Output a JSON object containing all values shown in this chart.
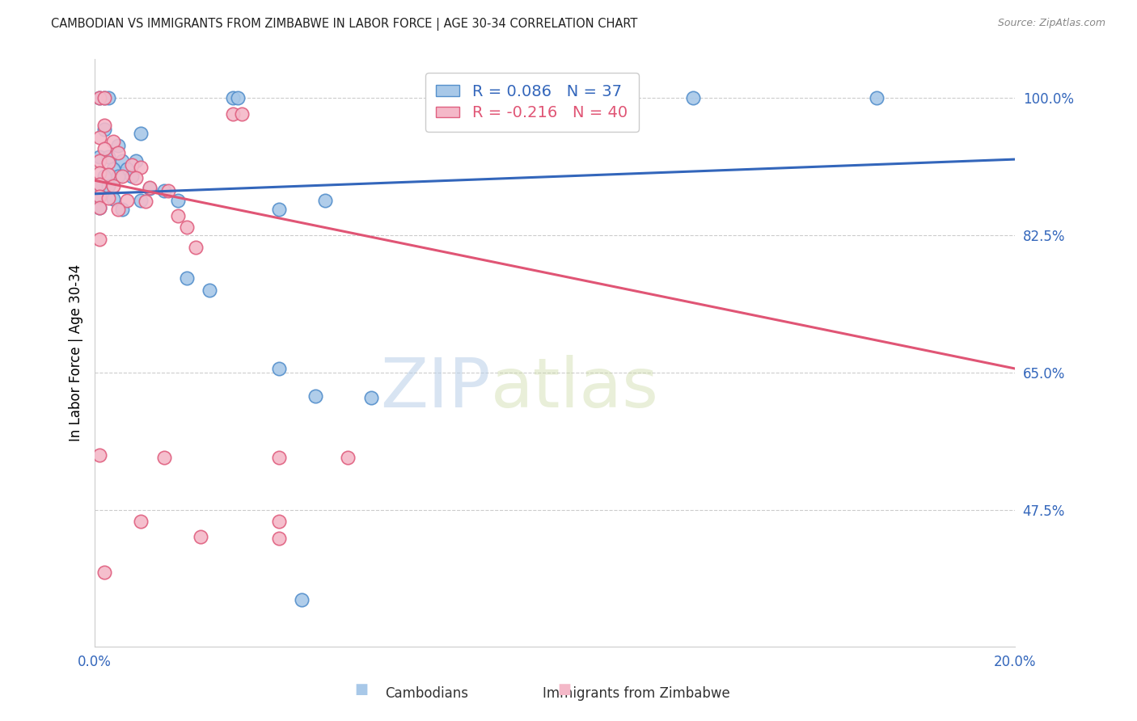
{
  "title": "CAMBODIAN VS IMMIGRANTS FROM ZIMBABWE IN LABOR FORCE | AGE 30-34 CORRELATION CHART",
  "source": "Source: ZipAtlas.com",
  "ylabel": "In Labor Force | Age 30-34",
  "legend_label_blue": "Cambodians",
  "legend_label_pink": "Immigrants from Zimbabwe",
  "r_blue": 0.086,
  "n_blue": 37,
  "r_pink": -0.216,
  "n_pink": 40,
  "xlim": [
    0.0,
    0.2
  ],
  "ylim": [
    0.3,
    1.05
  ],
  "xticks": [
    0.0,
    0.04,
    0.08,
    0.12,
    0.16,
    0.2
  ],
  "xticklabels": [
    "0.0%",
    "",
    "",
    "",
    "",
    "20.0%"
  ],
  "yticks_right": [
    1.0,
    0.825,
    0.65,
    0.475
  ],
  "ytick_labels_right": [
    "100.0%",
    "82.5%",
    "65.0%",
    "47.5%"
  ],
  "color_blue": "#a8c8e8",
  "color_blue_edge": "#5590cc",
  "color_blue_line": "#3366bb",
  "color_pink": "#f4b8c8",
  "color_pink_edge": "#e06080",
  "color_pink_line": "#e05575",
  "color_pink_label": "#e05575",
  "color_blue_label": "#3366bb",
  "color_axis_right": "#3366bb",
  "color_axis_bottom": "#3366bb",
  "blue_points": [
    [
      0.001,
      1.0
    ],
    [
      0.002,
      1.0
    ],
    [
      0.003,
      1.0
    ],
    [
      0.03,
      1.0
    ],
    [
      0.031,
      1.0
    ],
    [
      0.13,
      1.0
    ],
    [
      0.17,
      1.0
    ],
    [
      0.002,
      0.96
    ],
    [
      0.01,
      0.955
    ],
    [
      0.005,
      0.94
    ],
    [
      0.001,
      0.925
    ],
    [
      0.003,
      0.925
    ],
    [
      0.006,
      0.92
    ],
    [
      0.009,
      0.92
    ],
    [
      0.004,
      0.91
    ],
    [
      0.007,
      0.91
    ],
    [
      0.002,
      0.9
    ],
    [
      0.005,
      0.9
    ],
    [
      0.008,
      0.9
    ],
    [
      0.001,
      0.89
    ],
    [
      0.003,
      0.888
    ],
    [
      0.012,
      0.885
    ],
    [
      0.015,
      0.882
    ],
    [
      0.001,
      0.875
    ],
    [
      0.004,
      0.872
    ],
    [
      0.01,
      0.87
    ],
    [
      0.018,
      0.87
    ],
    [
      0.05,
      0.87
    ],
    [
      0.001,
      0.86
    ],
    [
      0.006,
      0.858
    ],
    [
      0.04,
      0.858
    ],
    [
      0.02,
      0.77
    ],
    [
      0.025,
      0.755
    ],
    [
      0.04,
      0.655
    ],
    [
      0.048,
      0.62
    ],
    [
      0.06,
      0.618
    ],
    [
      0.045,
      0.36
    ]
  ],
  "pink_points": [
    [
      0.001,
      1.0
    ],
    [
      0.002,
      1.0
    ],
    [
      0.03,
      0.98
    ],
    [
      0.032,
      0.98
    ],
    [
      0.002,
      0.965
    ],
    [
      0.001,
      0.95
    ],
    [
      0.004,
      0.945
    ],
    [
      0.002,
      0.935
    ],
    [
      0.005,
      0.93
    ],
    [
      0.001,
      0.92
    ],
    [
      0.003,
      0.918
    ],
    [
      0.008,
      0.915
    ],
    [
      0.01,
      0.912
    ],
    [
      0.001,
      0.905
    ],
    [
      0.003,
      0.902
    ],
    [
      0.006,
      0.9
    ],
    [
      0.009,
      0.898
    ],
    [
      0.001,
      0.89
    ],
    [
      0.004,
      0.888
    ],
    [
      0.012,
      0.886
    ],
    [
      0.016,
      0.882
    ],
    [
      0.001,
      0.875
    ],
    [
      0.003,
      0.873
    ],
    [
      0.007,
      0.87
    ],
    [
      0.011,
      0.868
    ],
    [
      0.001,
      0.86
    ],
    [
      0.005,
      0.858
    ],
    [
      0.018,
      0.85
    ],
    [
      0.02,
      0.835
    ],
    [
      0.001,
      0.82
    ],
    [
      0.022,
      0.81
    ],
    [
      0.001,
      0.545
    ],
    [
      0.015,
      0.542
    ],
    [
      0.04,
      0.542
    ],
    [
      0.055,
      0.542
    ],
    [
      0.01,
      0.46
    ],
    [
      0.04,
      0.46
    ],
    [
      0.023,
      0.44
    ],
    [
      0.04,
      0.438
    ],
    [
      0.002,
      0.395
    ]
  ],
  "blue_line": [
    [
      0.0,
      0.878
    ],
    [
      0.2,
      0.922
    ]
  ],
  "pink_line": [
    [
      0.0,
      0.895
    ],
    [
      0.2,
      0.655
    ]
  ],
  "watermark_zip": "ZIP",
  "watermark_atlas": "atlas"
}
